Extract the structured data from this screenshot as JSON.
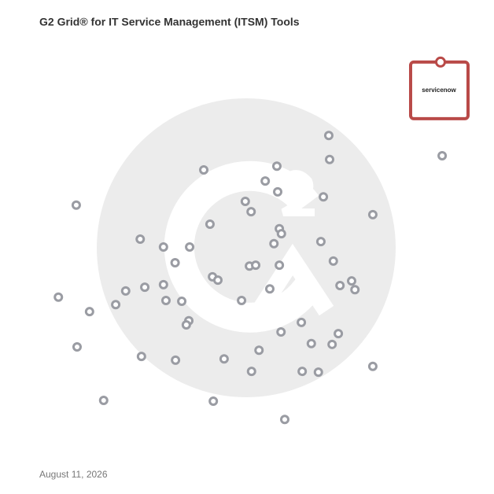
{
  "chart_data": {
    "type": "scatter",
    "title": "G2 Grid® for IT Service Management (ITSM) Tools",
    "date": "August 11, 2026",
    "xlim": [
      0,
      100
    ],
    "ylim": [
      0,
      100
    ],
    "color": "#9a9ca3",
    "x": [
      69.5,
      69.7,
      96.8,
      57.0,
      39.4,
      54.2,
      57.2,
      68.2,
      49.4,
      50.8,
      8.7,
      80.1,
      40.9,
      57.6,
      58.1,
      24.1,
      67.6,
      56.3,
      29.7,
      36.0,
      32.5,
      70.6,
      50.4,
      51.9,
      57.6,
      41.5,
      42.8,
      75.0,
      72.2,
      75.8,
      29.7,
      25.2,
      20.6,
      55.3,
      4.4,
      30.3,
      34.1,
      48.5,
      18.2,
      11.9,
      35.8,
      35.2,
      62.9,
      58.0,
      71.8,
      65.3,
      70.3,
      8.9,
      52.7,
      24.4,
      32.6,
      44.3,
      80.1,
      50.9,
      63.1,
      67.0,
      15.3,
      41.7,
      58.9
    ],
    "values": [
      77.0,
      71.2,
      72.1,
      69.6,
      68.7,
      66.0,
      63.4,
      62.2,
      61.1,
      58.6,
      60.2,
      57.9,
      55.6,
      54.5,
      53.3,
      52.0,
      51.4,
      50.9,
      50.1,
      50.1,
      46.3,
      46.7,
      45.5,
      45.7,
      45.7,
      42.9,
      42.1,
      41.9,
      40.8,
      39.8,
      41.0,
      40.4,
      39.5,
      40.0,
      38.0,
      37.2,
      37.0,
      37.2,
      36.2,
      34.5,
      32.3,
      31.3,
      31.9,
      29.6,
      29.2,
      26.8,
      26.6,
      26.0,
      25.2,
      23.7,
      22.8,
      23.1,
      21.3,
      20.1,
      20.1,
      19.9,
      13.1,
      12.9,
      8.5
    ],
    "highlight": {
      "name": "servicenow",
      "x": 96.4,
      "y": 94.7,
      "color": "#b94a48"
    }
  }
}
